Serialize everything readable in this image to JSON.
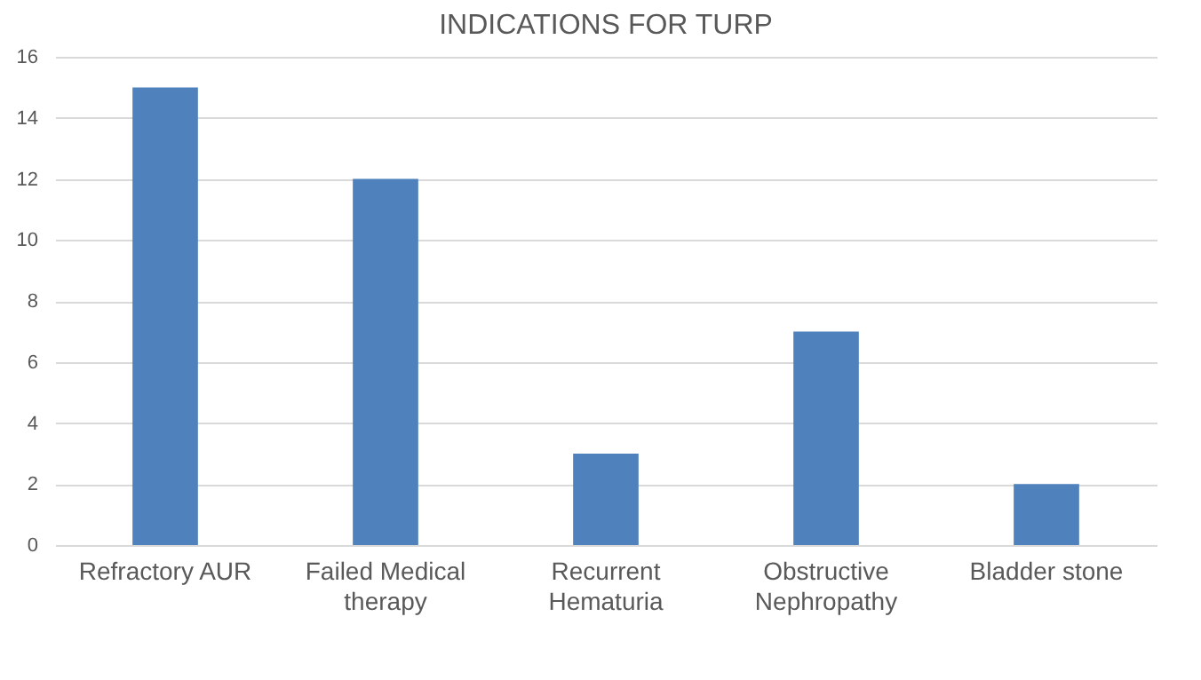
{
  "chart_data": {
    "type": "bar",
    "title": "INDICATIONS FOR TURP",
    "categories": [
      "Refractory AUR",
      "Failed Medical therapy",
      "Recurrent Hematuria",
      "Obstructive Nephropathy",
      "Bladder stone"
    ],
    "values": [
      15,
      12,
      3,
      7,
      2
    ],
    "color": "#4f81bd",
    "ylim": [
      0,
      16
    ],
    "yticks": [
      0,
      2,
      4,
      6,
      8,
      10,
      12,
      14,
      16
    ],
    "grid": "y"
  }
}
